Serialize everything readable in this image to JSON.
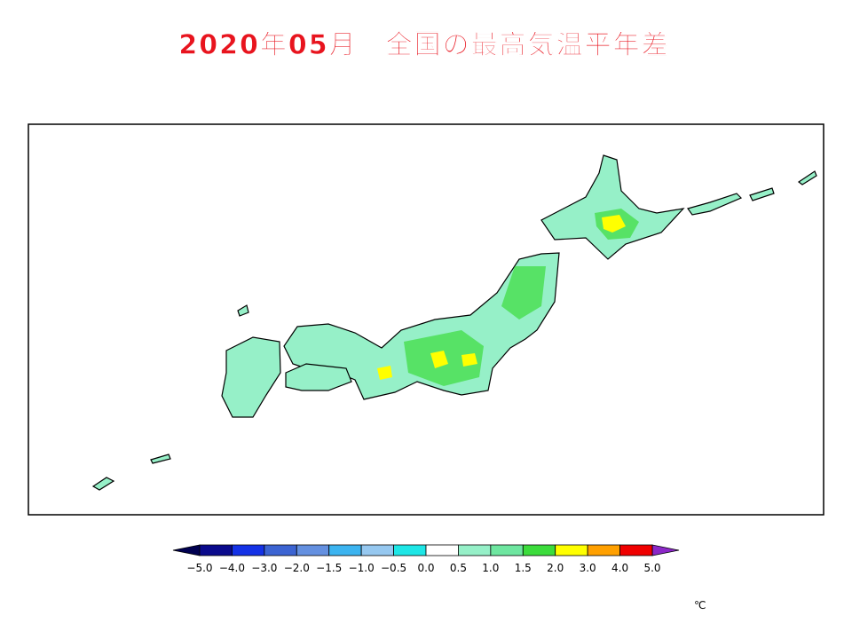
{
  "title": "2020年05月　全国の最高気温平年差",
  "legend": {
    "ticks": [
      {
        "value": -5.0,
        "label": "−5.0"
      },
      {
        "value": -4.0,
        "label": "−4.0"
      },
      {
        "value": -3.0,
        "label": "−3.0"
      },
      {
        "value": -2.0,
        "label": "−2.0"
      },
      {
        "value": -1.5,
        "label": "−1.5"
      },
      {
        "value": -1.0,
        "label": "−1.0"
      },
      {
        "value": -0.5,
        "label": "−0.5"
      },
      {
        "value": 0.0,
        "label": "0.0"
      },
      {
        "value": 0.5,
        "label": "0.5"
      },
      {
        "value": 1.0,
        "label": "1.0"
      },
      {
        "value": 1.5,
        "label": "1.5"
      },
      {
        "value": 2.0,
        "label": "2.0"
      },
      {
        "value": 3.0,
        "label": "3.0"
      },
      {
        "value": 4.0,
        "label": "4.0"
      },
      {
        "value": 5.0,
        "label": "5.0"
      }
    ],
    "colors": [
      "#0a0a8c",
      "#1432e6",
      "#3c64d2",
      "#6490e0",
      "#3cb4f0",
      "#96c8f0",
      "#1ee6e6",
      "#ffffff",
      "#96f0c8",
      "#6ee6a0",
      "#3cdc3c",
      "#ffff00",
      "#ffa000",
      "#f00000"
    ],
    "under_color": "#000050",
    "over_color": "#8c28c8",
    "unit": "℃"
  }
}
